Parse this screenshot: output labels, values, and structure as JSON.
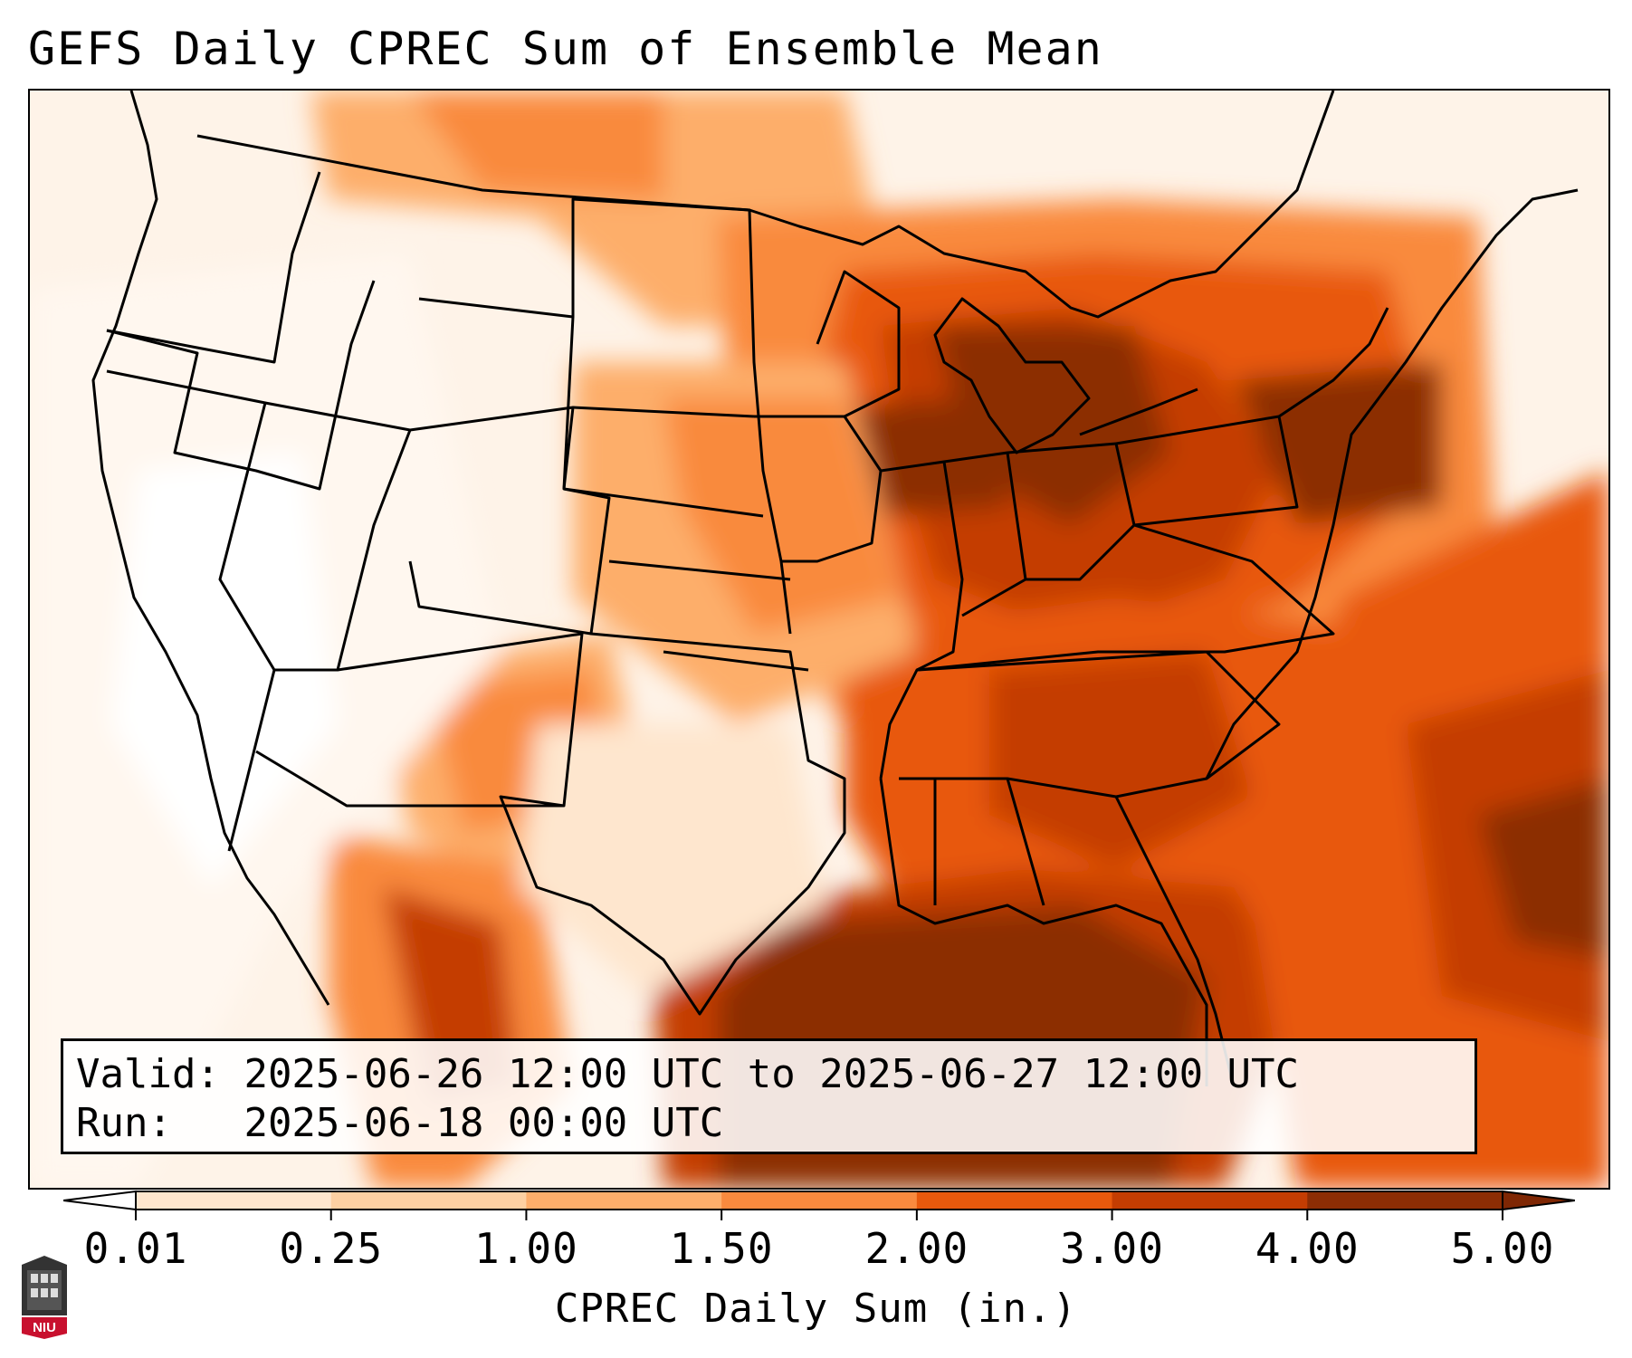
{
  "title": "GEFS Daily CPREC Sum of Ensemble Mean",
  "info": {
    "valid_label": "Valid:",
    "valid_value": "2025-06-26 12:00 UTC to 2025-06-27 12:00 UTC",
    "run_label": "Run:",
    "run_value": "2025-06-18 00:00 UTC"
  },
  "colorbar": {
    "label": "CPREC Daily Sum (in.)",
    "ticks": [
      "0.01",
      "0.25",
      "1.00",
      "1.50",
      "2.00",
      "3.00",
      "4.00",
      "5.00"
    ],
    "colors": [
      "#fff5eb",
      "#fee6ce",
      "#fdd0a2",
      "#fdae6b",
      "#f98a3e",
      "#e8590c",
      "#c43d02",
      "#8c2d04"
    ],
    "under_color": "#ffffff",
    "over_color": "#7f2704"
  },
  "map": {
    "region": "CONUS",
    "field": "precipitation shading",
    "logo": "niu-logo",
    "logo_text": "NIU"
  }
}
